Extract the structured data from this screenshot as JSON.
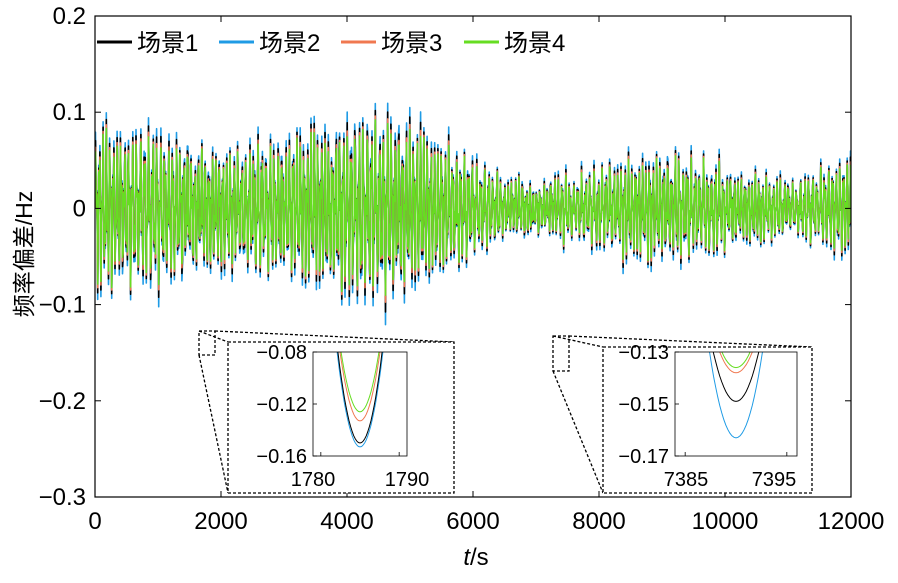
{
  "chart_data": {
    "type": "line",
    "xlabel": "t/s",
    "xlabel_italic": "t",
    "xlabel_unit": "/s",
    "ylabel": "频率偏差/Hz",
    "xlim": [
      0,
      12000
    ],
    "ylim": [
      -0.3,
      0.2
    ],
    "xticks": [
      "0",
      "2000",
      "4000",
      "6000",
      "8000",
      "10000",
      "12000"
    ],
    "yticks": [
      "0.2",
      "0.1",
      "0",
      "-0.1",
      "-0.2",
      "-0.3"
    ],
    "legend_position": "top-left",
    "series": [
      {
        "name": "场景1",
        "color": "#000000"
      },
      {
        "name": "场景2",
        "color": "#1f9be5"
      },
      {
        "name": "场景3",
        "color": "#f07850"
      },
      {
        "name": "场景4",
        "color": "#66dd22"
      }
    ],
    "insets": [
      {
        "xlim": [
          1779,
          1791
        ],
        "ylim": [
          -0.16,
          -0.08
        ],
        "xticks": [
          "1780",
          "1790"
        ],
        "yticks": [
          "-0.08",
          "-0.12",
          "-0.16"
        ],
        "minimum_time": 1785,
        "minima": {
          "场景1": -0.15,
          "场景2": -0.153,
          "场景3": -0.133,
          "场景4": -0.126
        }
      },
      {
        "xlim": [
          7384,
          7396
        ],
        "ylim": [
          -0.17,
          -0.13
        ],
        "xticks": [
          "7385",
          "7395"
        ],
        "yticks": [
          "-0.13",
          "-0.15",
          "-0.17"
        ],
        "minimum_time": 7390,
        "minima": {
          "场景1": -0.149,
          "场景2": -0.163,
          "场景3": -0.138,
          "场景4": -0.136
        }
      }
    ]
  }
}
